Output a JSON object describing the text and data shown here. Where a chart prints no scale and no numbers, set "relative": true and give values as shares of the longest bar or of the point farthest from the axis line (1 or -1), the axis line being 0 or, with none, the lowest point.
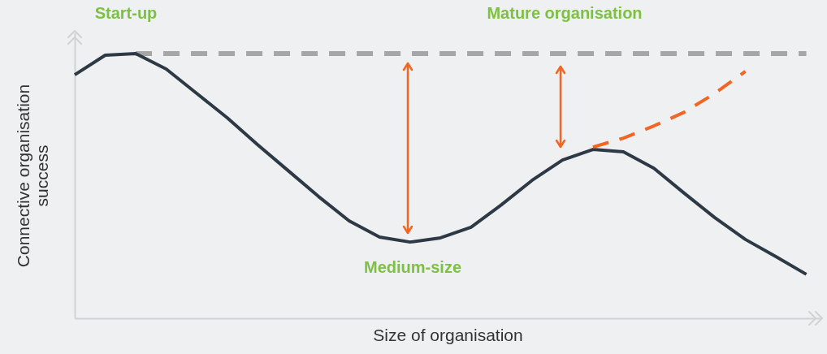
{
  "chart_data": {
    "type": "line",
    "relative": true,
    "xlabel": "Size of organisation",
    "ylabel": "Connective organisation success",
    "categories": [
      null,
      null,
      null,
      null,
      null,
      null,
      null,
      null,
      null,
      null,
      null,
      null,
      null,
      null,
      null,
      null,
      null,
      null,
      null,
      null,
      null,
      null,
      null,
      null,
      null
    ],
    "series": [
      {
        "color": "#a6a6a6",
        "line_style": "dashed",
        "values": [
          null,
          null,
          1,
          1,
          1,
          1,
          1,
          1,
          1,
          1,
          1,
          1,
          1,
          1,
          1,
          1,
          1,
          1,
          1,
          1,
          1,
          1,
          1,
          1,
          1
        ]
      },
      {
        "color": "#2d3a45",
        "line_style": "solid",
        "values": [
          0.92,
          0.994,
          1,
          0.942,
          0.85,
          0.758,
          0.656,
          0.558,
          0.46,
          0.368,
          0.307,
          0.288,
          0.304,
          0.344,
          0.429,
          0.521,
          0.598,
          0.638,
          0.629,
          0.567,
          0.472,
          0.38,
          0.298,
          0.233,
          0.166
        ]
      },
      {
        "color": "#f26522",
        "line_style": "dashed",
        "values": [
          null,
          null,
          null,
          null,
          null,
          null,
          null,
          null,
          null,
          null,
          null,
          null,
          null,
          null,
          null,
          null,
          null,
          0.647,
          0.681,
          0.727,
          0.779,
          0.85,
          0.933,
          null,
          null
        ]
      }
    ],
    "annotations": [
      "Start-up",
      "Mature organisation",
      "Medium-size"
    ]
  }
}
